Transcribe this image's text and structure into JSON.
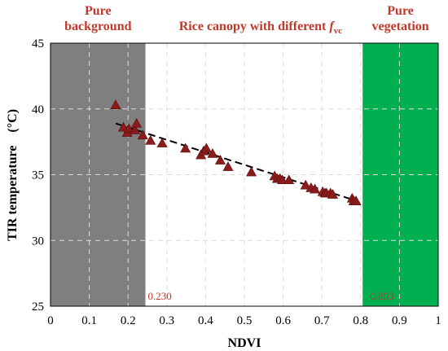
{
  "chart_data": {
    "type": "scatter",
    "xlabel": "NDVI",
    "ylabel": "TIR temperature    (°C)",
    "xlim": [
      0,
      1
    ],
    "ylim": [
      25,
      45
    ],
    "x_ticks": [
      "0",
      "0.1",
      "0.2",
      "0.3",
      "0.4",
      "0.5",
      "0.6",
      "0.7",
      "0.8",
      "0.9",
      "1"
    ],
    "y_ticks": [
      "25",
      "30",
      "35",
      "40",
      "45"
    ],
    "grid": true,
    "regions": [
      {
        "label_line1": "Pure",
        "label_line2": "background",
        "x_from": 0,
        "x_to": 0.245,
        "color": "#7f7f7f"
      },
      {
        "label_line1": "Rice canopy with different",
        "label_line2": "",
        "italic": "f",
        "subscript": "vc",
        "x_from": 0.245,
        "x_to": 0.805,
        "color": "#ffffff"
      },
      {
        "label_line1": "Pure",
        "label_line2": "vegetation",
        "x_from": 0.805,
        "x_to": 1.0,
        "color": "#00b050"
      }
    ],
    "threshold_labels": [
      {
        "text": "0.230",
        "x": 0.23
      },
      {
        "text": "0.803",
        "x": 0.803
      }
    ],
    "series": [
      {
        "marker": "triangle",
        "color": "#8b1a1a",
        "x": [
          0.168,
          0.188,
          0.198,
          0.202,
          0.218,
          0.222,
          0.238,
          0.258,
          0.288,
          0.348,
          0.388,
          0.395,
          0.402,
          0.418,
          0.438,
          0.458,
          0.518,
          0.578,
          0.585,
          0.592,
          0.598,
          0.615,
          0.658,
          0.672,
          0.682,
          0.702,
          0.708,
          0.712,
          0.722,
          0.728,
          0.778,
          0.782,
          0.788
        ],
        "y": [
          40.3,
          38.6,
          38.2,
          38.5,
          38.4,
          38.9,
          38.0,
          37.6,
          37.4,
          37.0,
          36.5,
          36.8,
          37.0,
          36.6,
          36.1,
          35.6,
          35.2,
          34.9,
          34.7,
          34.7,
          34.6,
          34.6,
          34.2,
          34.0,
          33.9,
          33.7,
          33.6,
          33.6,
          33.6,
          33.5,
          33.2,
          33.0,
          33.0
        ]
      }
    ],
    "trend_line": {
      "x": [
        0.168,
        0.79
      ],
      "y": [
        38.9,
        33.0
      ],
      "style": "dashed",
      "color": "#000000"
    }
  }
}
